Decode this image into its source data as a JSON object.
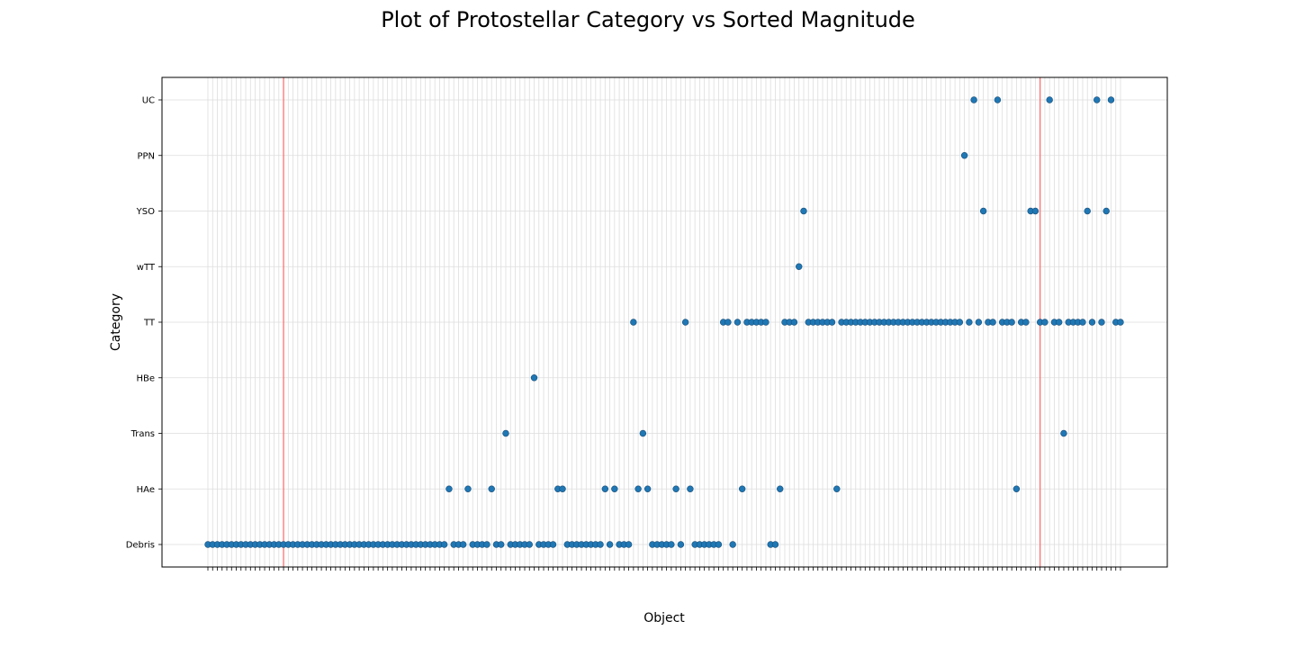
{
  "chart_data": {
    "type": "scatter",
    "title": "Plot of Protostellar Category vs Sorted Magnitude",
    "xlabel": "Object",
    "ylabel": "Category",
    "categories": [
      "Debris",
      "HAe",
      "Trans",
      "HBe",
      "TT",
      "wTT",
      "YSO",
      "PPN",
      "UC"
    ],
    "grid": true,
    "marker_color": "#1f77b4",
    "reference_line_color": "#ff6666",
    "reference_lines_at_index": [
      16,
      176
    ],
    "points": [
      "Debris",
      "Debris",
      "Debris",
      "Debris",
      "Debris",
      "Debris",
      "Debris",
      "Debris",
      "Debris",
      "Debris",
      "Debris",
      "Debris",
      "Debris",
      "Debris",
      "Debris",
      "Debris",
      "Debris",
      "Debris",
      "Debris",
      "Debris",
      "Debris",
      "Debris",
      "Debris",
      "Debris",
      "Debris",
      "Debris",
      "Debris",
      "Debris",
      "Debris",
      "Debris",
      "Debris",
      "Debris",
      "Debris",
      "Debris",
      "Debris",
      "Debris",
      "Debris",
      "Debris",
      "Debris",
      "Debris",
      "Debris",
      "Debris",
      "Debris",
      "Debris",
      "Debris",
      "Debris",
      "Debris",
      "Debris",
      "Debris",
      "Debris",
      "Debris",
      "HAe",
      "Debris",
      "Debris",
      "Debris",
      "HAe",
      "Debris",
      "Debris",
      "Debris",
      "Debris",
      "HAe",
      "Debris",
      "Debris",
      "Trans",
      "Debris",
      "Debris",
      "Debris",
      "Debris",
      "Debris",
      "HBe",
      "Debris",
      "Debris",
      "Debris",
      "Debris",
      "HAe",
      "HAe",
      "Debris",
      "Debris",
      "Debris",
      "Debris",
      "Debris",
      "Debris",
      "Debris",
      "Debris",
      "HAe",
      "Debris",
      "HAe",
      "Debris",
      "Debris",
      "Debris",
      "TT",
      "HAe",
      "Trans",
      "HAe",
      "Debris",
      "Debris",
      "Debris",
      "Debris",
      "Debris",
      "HAe",
      "Debris",
      "TT",
      "HAe",
      "Debris",
      "Debris",
      "Debris",
      "Debris",
      "Debris",
      "Debris",
      "TT",
      "TT",
      "Debris",
      "TT",
      "HAe",
      "TT",
      "TT",
      "TT",
      "TT",
      "TT",
      "Debris",
      "Debris",
      "HAe",
      "TT",
      "TT",
      "TT",
      "wTT",
      "YSO",
      "TT",
      "TT",
      "TT",
      "TT",
      "TT",
      "TT",
      "HAe",
      "TT",
      "TT",
      "TT",
      "TT",
      "TT",
      "TT",
      "TT",
      "TT",
      "TT",
      "TT",
      "TT",
      "TT",
      "TT",
      "TT",
      "TT",
      "TT",
      "TT",
      "TT",
      "TT",
      "TT",
      "TT",
      "TT",
      "TT",
      "TT",
      "TT",
      "TT",
      "PPN",
      "TT",
      "UC",
      "TT",
      "YSO",
      "TT",
      "TT",
      "UC",
      "TT",
      "TT",
      "TT",
      "HAe",
      "TT",
      "TT",
      "YSO",
      "YSO",
      "TT",
      "TT",
      "UC",
      "TT",
      "TT",
      "Trans",
      "TT",
      "TT",
      "TT",
      "TT",
      "YSO",
      "TT",
      "UC",
      "TT",
      "YSO",
      "UC",
      "TT",
      "TT"
    ]
  }
}
